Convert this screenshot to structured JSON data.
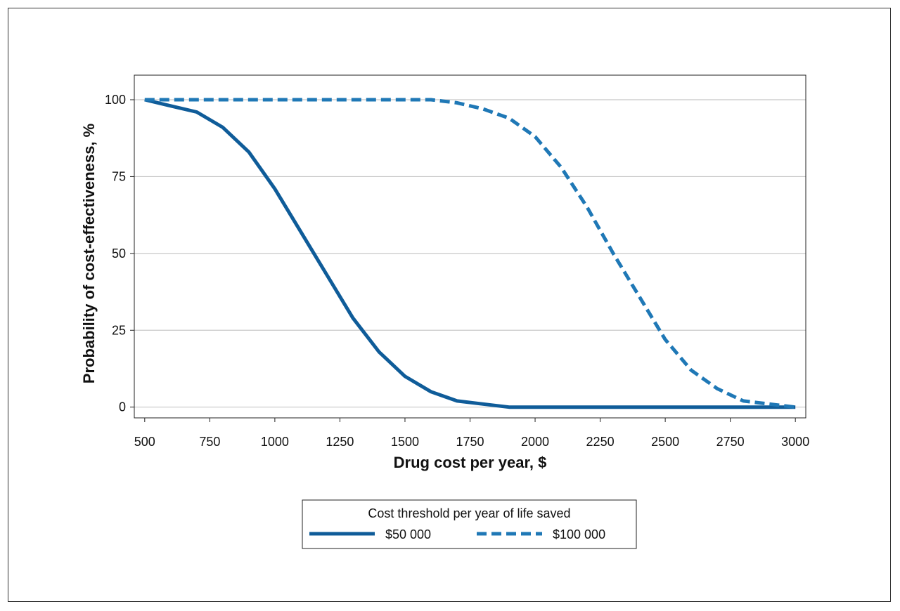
{
  "chart_data": {
    "type": "line",
    "xlabel": "Drug cost per year, $",
    "ylabel": "Probability of cost-effectiveness, %",
    "xlim": [
      460,
      3040
    ],
    "ylim": [
      -3.5,
      108
    ],
    "x_ticks": [
      500,
      750,
      1000,
      1250,
      1500,
      1750,
      2000,
      2250,
      2500,
      2750,
      3000
    ],
    "y_ticks": [
      0,
      25,
      50,
      75,
      100
    ],
    "grid": "horizontal",
    "legend": {
      "title": "Cost threshold per year of life saved",
      "placement": "bottom-center"
    },
    "series": [
      {
        "name": "$50 000",
        "color": "#0f5c99",
        "dash": "solid",
        "x": [
          500,
          600,
          700,
          800,
          900,
          1000,
          1100,
          1200,
          1300,
          1400,
          1500,
          1600,
          1700,
          1800,
          1900,
          2000,
          2100,
          2200,
          2300,
          2400,
          2500,
          2600,
          2700,
          2800,
          2900,
          3000
        ],
        "values": [
          100,
          98,
          96,
          91,
          83,
          71,
          57,
          43,
          29,
          18,
          10,
          5,
          2,
          1,
          0,
          0,
          0,
          0,
          0,
          0,
          0,
          0,
          0,
          0,
          0,
          0
        ]
      },
      {
        "name": "$100 000",
        "color": "#1f78b6",
        "dash": "dashed",
        "x": [
          500,
          600,
          700,
          800,
          900,
          1000,
          1100,
          1200,
          1300,
          1400,
          1500,
          1600,
          1700,
          1800,
          1900,
          2000,
          2100,
          2200,
          2300,
          2400,
          2500,
          2600,
          2700,
          2800,
          2900,
          3000
        ],
        "values": [
          100,
          100,
          100,
          100,
          100,
          100,
          100,
          100,
          100,
          100,
          100,
          100,
          99,
          97,
          94,
          88,
          78,
          65,
          50,
          36,
          22,
          12,
          6,
          2,
          1,
          0
        ]
      }
    ]
  }
}
